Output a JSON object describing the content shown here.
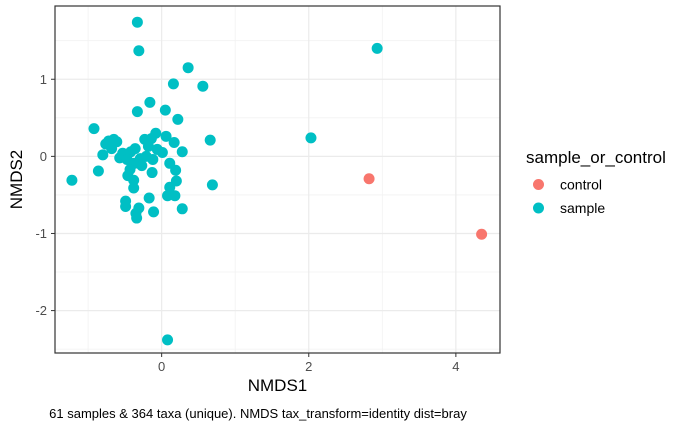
{
  "chart_data": {
    "type": "scatter",
    "title": "",
    "xlabel": "NMDS1",
    "ylabel": "NMDS2",
    "xlim": [
      -1.45,
      4.6
    ],
    "ylim": [
      -2.55,
      1.95
    ],
    "x_ticks": [
      0,
      2,
      4
    ],
    "y_ticks": [
      -2,
      -1,
      0,
      1
    ],
    "x_tick_labels": [
      "0",
      "2",
      "4"
    ],
    "y_tick_labels": [
      "-2",
      "-1",
      "0",
      "1"
    ],
    "grid": true,
    "legend": {
      "title": "sample_or_control",
      "placement": "right",
      "entries": [
        {
          "label": "control",
          "color": "#F8766D"
        },
        {
          "label": "sample",
          "color": "#00BFC4"
        }
      ]
    },
    "caption": "61 samples & 364 taxa (unique). NMDS tax_transform=identity dist=bray",
    "series": [
      {
        "name": "control",
        "color": "#F8766D",
        "points": [
          [
            2.82,
            -0.29
          ],
          [
            4.35,
            -1.01
          ]
        ]
      },
      {
        "name": "sample",
        "color": "#00BFC4",
        "points": [
          [
            -0.33,
            1.74
          ],
          [
            -0.31,
            1.37
          ],
          [
            0.36,
            1.15
          ],
          [
            0.16,
            0.94
          ],
          [
            0.56,
            0.91
          ],
          [
            2.93,
            1.4
          ],
          [
            -0.16,
            0.7
          ],
          [
            0.05,
            0.6
          ],
          [
            -0.33,
            0.58
          ],
          [
            0.22,
            0.48
          ],
          [
            -0.92,
            0.36
          ],
          [
            -0.08,
            0.3
          ],
          [
            0.06,
            0.26
          ],
          [
            0.66,
            0.21
          ],
          [
            2.03,
            0.24
          ],
          [
            -0.65,
            0.22
          ],
          [
            -0.72,
            0.2
          ],
          [
            -0.61,
            0.19
          ],
          [
            -0.76,
            0.16
          ],
          [
            -0.23,
            0.22
          ],
          [
            -0.14,
            0.23
          ],
          [
            0.17,
            0.18
          ],
          [
            -0.68,
            0.1
          ],
          [
            -0.8,
            0.02
          ],
          [
            -0.53,
            0.04
          ],
          [
            -0.36,
            0.1
          ],
          [
            -0.42,
            0.06
          ],
          [
            -0.18,
            0.13
          ],
          [
            -0.06,
            0.09
          ],
          [
            0.01,
            0.05
          ],
          [
            0.28,
            0.06
          ],
          [
            -0.57,
            -0.02
          ],
          [
            -0.47,
            -0.04
          ],
          [
            -0.29,
            -0.03
          ],
          [
            -0.21,
            0.0
          ],
          [
            -0.12,
            -0.04
          ],
          [
            -0.37,
            -0.09
          ],
          [
            -0.27,
            -0.12
          ],
          [
            0.11,
            -0.09
          ],
          [
            -0.86,
            -0.19
          ],
          [
            -0.43,
            -0.17
          ],
          [
            -0.13,
            -0.21
          ],
          [
            0.19,
            -0.18
          ],
          [
            -0.46,
            -0.25
          ],
          [
            -0.38,
            -0.31
          ],
          [
            0.2,
            -0.32
          ],
          [
            -1.22,
            -0.31
          ],
          [
            -0.38,
            -0.41
          ],
          [
            0.11,
            -0.4
          ],
          [
            0.69,
            -0.37
          ],
          [
            0.08,
            -0.51
          ],
          [
            -0.17,
            -0.54
          ],
          [
            0.18,
            -0.51
          ],
          [
            -0.49,
            -0.58
          ],
          [
            -0.49,
            -0.65
          ],
          [
            -0.31,
            -0.67
          ],
          [
            0.28,
            -0.68
          ],
          [
            -0.35,
            -0.74
          ],
          [
            -0.11,
            -0.72
          ],
          [
            -0.34,
            -0.8
          ],
          [
            0.08,
            -2.38
          ]
        ]
      }
    ]
  }
}
